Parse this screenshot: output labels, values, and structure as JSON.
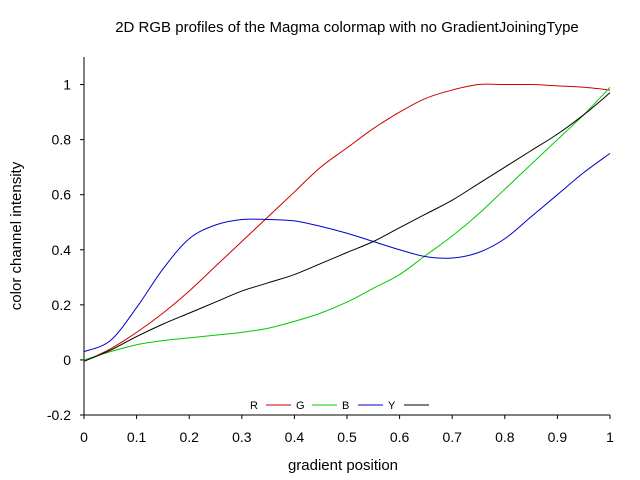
{
  "chart_data": {
    "type": "line",
    "title": "2D RGB profiles of the Magma colormap with no GradientJoiningType",
    "xlabel": "gradient position",
    "ylabel": "color channel intensity",
    "xlim": [
      0,
      1
    ],
    "ylim": [
      -0.2,
      1.1
    ],
    "x_ticks": [
      "0",
      "0.1",
      "0.2",
      "0.3",
      "0.4",
      "0.5",
      "0.6",
      "0.7",
      "0.8",
      "0.9",
      "1"
    ],
    "y_ticks": [
      "-0.2",
      "0",
      "0.2",
      "0.4",
      "0.6",
      "0.8",
      "1"
    ],
    "y_tick_values": [
      -0.2,
      0,
      0.2,
      0.4,
      0.6,
      0.8,
      1
    ],
    "grid": false,
    "legend_position": "bottom-center",
    "x": [
      0,
      0.05,
      0.1,
      0.15,
      0.2,
      0.25,
      0.3,
      0.35,
      0.4,
      0.45,
      0.5,
      0.55,
      0.6,
      0.65,
      0.7,
      0.75,
      0.8,
      0.85,
      0.9,
      0.95,
      1
    ],
    "series": [
      {
        "name": "R",
        "color": "#cc0000",
        "values": [
          -0.005,
          0.04,
          0.1,
          0.17,
          0.25,
          0.34,
          0.43,
          0.52,
          0.61,
          0.7,
          0.77,
          0.84,
          0.9,
          0.95,
          0.98,
          1.0,
          1.0,
          1.0,
          0.995,
          0.99,
          0.98
        ]
      },
      {
        "name": "G",
        "color": "#00cc00",
        "values": [
          0.0,
          0.03,
          0.055,
          0.07,
          0.08,
          0.09,
          0.1,
          0.115,
          0.14,
          0.17,
          0.21,
          0.26,
          0.31,
          0.38,
          0.45,
          0.53,
          0.62,
          0.71,
          0.8,
          0.89,
          0.99
        ]
      },
      {
        "name": "B",
        "color": "#0000cc",
        "values": [
          0.03,
          0.07,
          0.19,
          0.33,
          0.44,
          0.49,
          0.51,
          0.51,
          0.505,
          0.485,
          0.46,
          0.43,
          0.4,
          0.375,
          0.37,
          0.39,
          0.44,
          0.52,
          0.6,
          0.68,
          0.75
        ]
      },
      {
        "name": "Y",
        "color": "#000000",
        "values": [
          -0.005,
          0.035,
          0.085,
          0.13,
          0.17,
          0.21,
          0.25,
          0.28,
          0.31,
          0.35,
          0.39,
          0.43,
          0.48,
          0.53,
          0.58,
          0.64,
          0.7,
          0.76,
          0.82,
          0.89,
          0.97
        ]
      }
    ]
  }
}
